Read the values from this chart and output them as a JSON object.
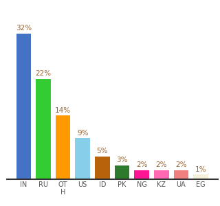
{
  "categories": [
    "IN",
    "RU",
    "OT\nH",
    "US",
    "ID",
    "PK",
    "NG",
    "KZ",
    "UA",
    "EG"
  ],
  "values": [
    32,
    22,
    14,
    9,
    5,
    3,
    2,
    2,
    2,
    1
  ],
  "bar_colors": [
    "#4472c4",
    "#33cc33",
    "#ff9900",
    "#87ceeb",
    "#b8620a",
    "#2d7a2d",
    "#ff1493",
    "#ff69b4",
    "#f08080",
    "#f5f0dc"
  ],
  "background_color": "#ffffff",
  "label_color": "#996633",
  "label_fontsize": 7.5,
  "bar_width": 0.75,
  "ylim": [
    0,
    38
  ]
}
